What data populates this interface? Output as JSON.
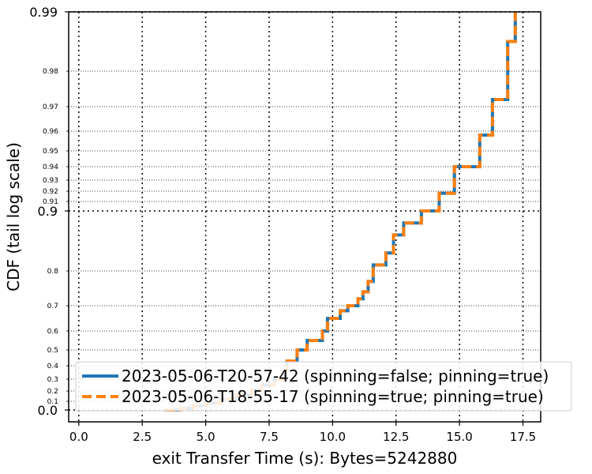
{
  "chart_data": {
    "type": "line",
    "title": "",
    "xlabel": "exit Transfer Time (s): Bytes=5242880",
    "ylabel": "CDF (tail log scale)",
    "xlim": [
      -0.4,
      18.2
    ],
    "y_scale": "tail-log",
    "x_ticks": [
      "0.0",
      "2.5",
      "5.0",
      "7.5",
      "10.0",
      "12.5",
      "15.0",
      "17.5"
    ],
    "x_tick_values": [
      0,
      2.5,
      5,
      7.5,
      10,
      12.5,
      15,
      17.5
    ],
    "y_major_ticks": [
      "0.0",
      "0.9",
      "0.99"
    ],
    "y_major_values": [
      0,
      0.9,
      0.99
    ],
    "y_minor_ticks": [
      "0.1",
      "0.2",
      "0.3",
      "0.4",
      "0.5",
      "0.6",
      "0.7",
      "0.8",
      "0.91",
      "0.92",
      "0.93",
      "0.94",
      "0.95",
      "0.96",
      "0.97",
      "0.98"
    ],
    "y_minor_values": [
      0.1,
      0.2,
      0.3,
      0.4,
      0.5,
      0.6,
      0.7,
      0.8,
      0.91,
      0.92,
      0.93,
      0.94,
      0.95,
      0.96,
      0.97,
      0.98
    ],
    "grid": true,
    "legend_position": "bottom-right",
    "series": [
      {
        "name": "2023-05-06-T20-57-42 (spinning=false; pinning=true)",
        "color": "#1f77b4",
        "style": "solid",
        "x": [
          3.4,
          4.0,
          4.5,
          5.0,
          5.6,
          6.2,
          6.8,
          7.2,
          7.7,
          8.1,
          8.2,
          8.6,
          9.0,
          9.6,
          9.8,
          10.3,
          10.6,
          11.0,
          11.2,
          11.4,
          11.6,
          12.1,
          12.4,
          12.8,
          13.5,
          14.2,
          14.8,
          15.8,
          16.3,
          16.9,
          17.2
        ],
        "y": [
          0.0,
          0.02,
          0.05,
          0.08,
          0.12,
          0.16,
          0.21,
          0.25,
          0.3,
          0.36,
          0.43,
          0.5,
          0.55,
          0.6,
          0.65,
          0.68,
          0.7,
          0.72,
          0.74,
          0.77,
          0.81,
          0.83,
          0.86,
          0.88,
          0.9,
          0.918,
          0.94,
          0.958,
          0.972,
          0.985,
          0.99
        ]
      },
      {
        "name": "2023-05-06-T18-55-17 (spinning=true; pinning=true)",
        "color": "#ff7f0e",
        "style": "dashed",
        "x": [
          3.4,
          4.0,
          4.5,
          5.0,
          5.6,
          6.2,
          6.8,
          7.2,
          7.7,
          8.1,
          8.2,
          8.6,
          9.0,
          9.6,
          9.8,
          10.3,
          10.6,
          11.0,
          11.2,
          11.4,
          11.6,
          12.1,
          12.4,
          12.8,
          13.5,
          14.2,
          14.8,
          15.8,
          16.3,
          16.9,
          17.2
        ],
        "y": [
          0.0,
          0.02,
          0.05,
          0.08,
          0.12,
          0.16,
          0.21,
          0.25,
          0.3,
          0.36,
          0.43,
          0.5,
          0.55,
          0.6,
          0.65,
          0.68,
          0.7,
          0.72,
          0.74,
          0.77,
          0.81,
          0.83,
          0.86,
          0.88,
          0.9,
          0.918,
          0.94,
          0.958,
          0.972,
          0.985,
          0.99
        ]
      }
    ]
  }
}
